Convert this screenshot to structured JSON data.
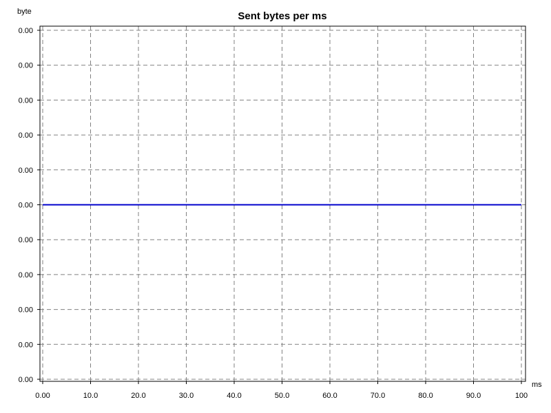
{
  "chart_data": {
    "type": "line",
    "title": "Sent bytes per ms",
    "xlabel": "ms",
    "ylabel": "byte",
    "x_ticks": [
      "0.00",
      "10.0",
      "20.0",
      "30.0",
      "40.0",
      "50.0",
      "60.0",
      "70.0",
      "80.0",
      "90.0",
      "100"
    ],
    "y_ticks": [
      "0.00",
      "0.00",
      "0.00",
      "0.00",
      "0.00",
      "0.00",
      "0.00",
      "0.00",
      "0.00",
      "0.00",
      "0.00"
    ],
    "xlim": [
      0,
      100
    ],
    "grid": true,
    "series": [
      {
        "color": "#0000cc",
        "x": [
          0,
          100
        ],
        "y": [
          0,
          0
        ]
      }
    ]
  }
}
